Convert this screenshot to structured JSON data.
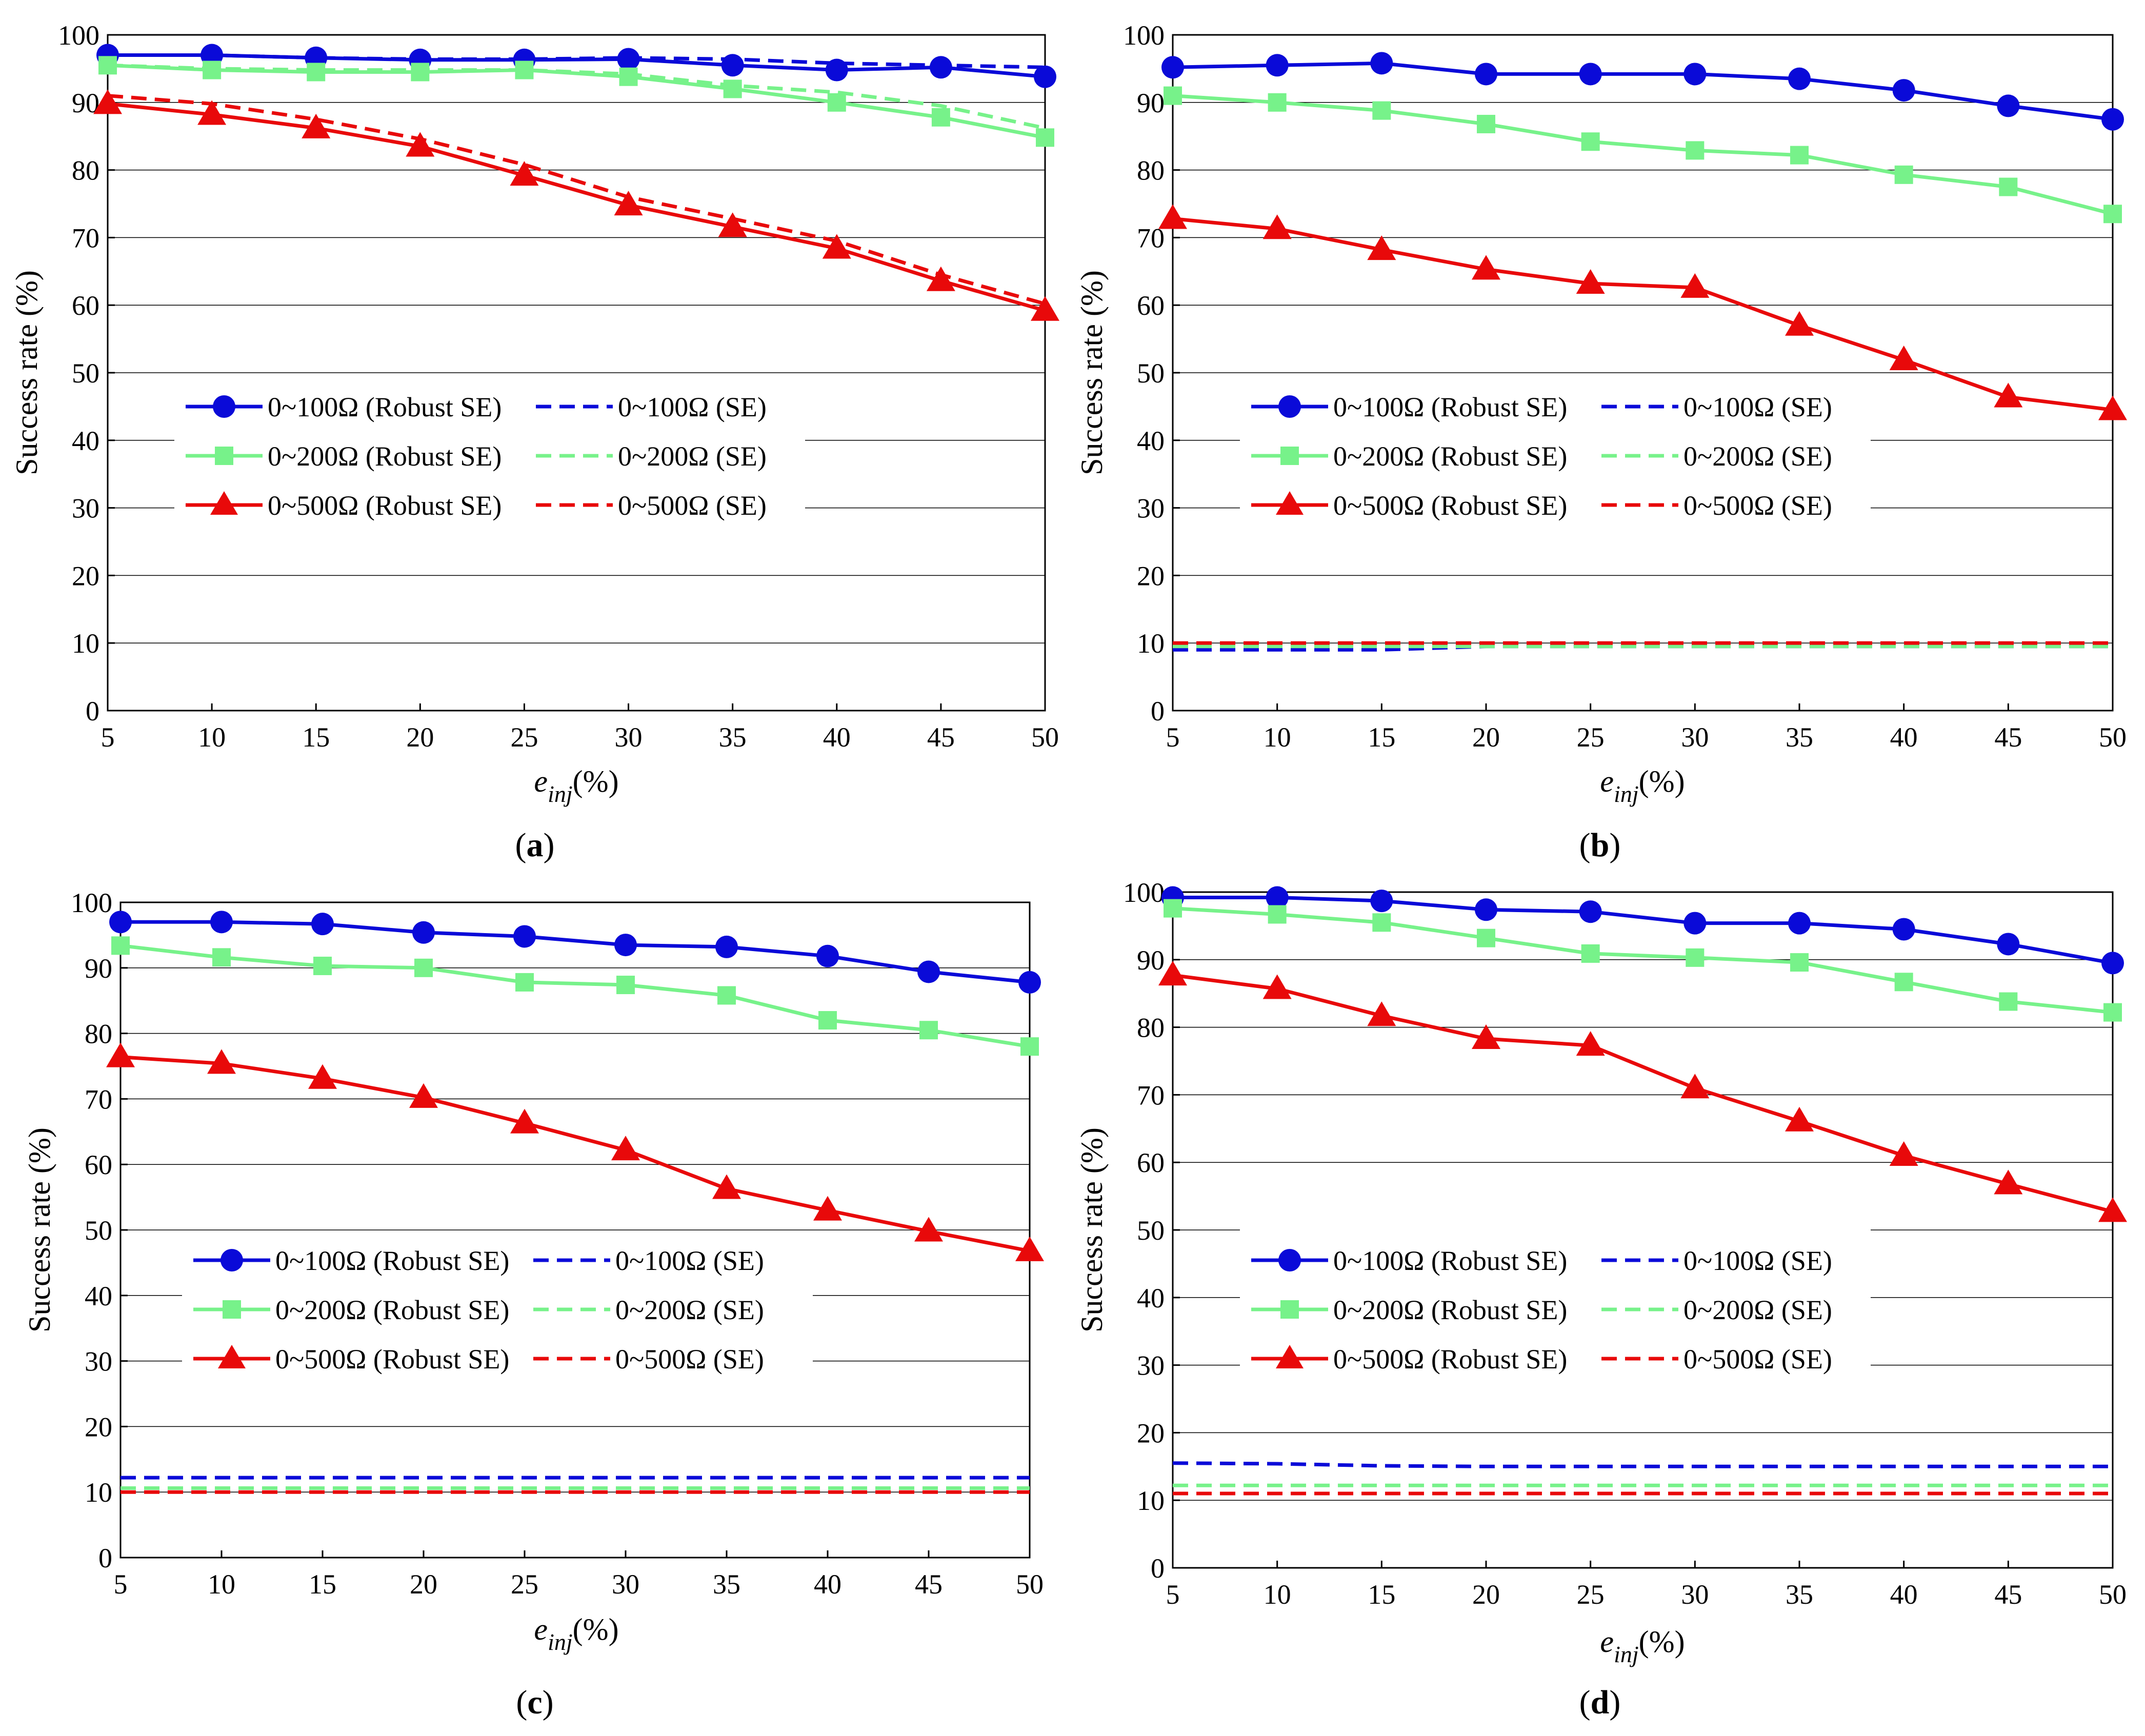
{
  "legend_labels": {
    "robust_100": "0~100Ω (Robust SE)",
    "se_100": "0~100Ω (SE)",
    "robust_200": "0~200Ω (Robust SE)",
    "se_200": "0~200Ω (SE)",
    "robust_500": "0~500Ω (Robust SE)",
    "se_500": "0~500Ω (SE)"
  },
  "axis_text": {
    "ylabel": "Success rate (%)",
    "xlabel_main": "e",
    "xlabel_sub": "inj",
    "xlabel_suffix": "(%)"
  },
  "captions": [
    {
      "open": "(",
      "letter": "a",
      "close": ")"
    },
    {
      "open": "(",
      "letter": "b",
      "close": ")"
    },
    {
      "open": "(",
      "letter": "c",
      "close": ")"
    },
    {
      "open": "(",
      "letter": "d",
      "close": ")"
    }
  ],
  "colors": {
    "blue": "#0a0ad8",
    "green": "#77f28a",
    "red": "#e8090a"
  },
  "chart_data": [
    {
      "type": "line",
      "panel": "a",
      "x": [
        5,
        10,
        15,
        20,
        25,
        30,
        35,
        40,
        45,
        50
      ],
      "xlim": [
        5,
        50
      ],
      "ylim": [
        0,
        100
      ],
      "xticks": [
        5,
        10,
        15,
        20,
        25,
        30,
        35,
        40,
        45,
        50
      ],
      "yticks": [
        0,
        10,
        20,
        30,
        40,
        50,
        60,
        70,
        80,
        90,
        100
      ],
      "xlabel": "e_inj(%)",
      "ylabel": "Success rate (%)",
      "legend": "center-left",
      "series": [
        {
          "name": "0~100Ω (Robust SE)",
          "color": "blue",
          "style": "solid",
          "marker": "circle",
          "values": [
            97.0,
            97.0,
            96.6,
            96.3,
            96.3,
            96.4,
            95.5,
            94.8,
            95.2,
            93.8
          ]
        },
        {
          "name": "0~100Ω (SE)",
          "color": "blue",
          "style": "dashed",
          "marker": "none",
          "values": [
            97.0,
            97.0,
            96.6,
            96.4,
            96.4,
            96.6,
            96.4,
            95.8,
            95.5,
            95.2
          ]
        },
        {
          "name": "0~200Ω (Robust SE)",
          "color": "green",
          "style": "solid",
          "marker": "square",
          "values": [
            95.5,
            94.8,
            94.5,
            94.5,
            94.8,
            93.8,
            92.0,
            90.0,
            87.8,
            84.8
          ]
        },
        {
          "name": "0~200Ω (SE)",
          "color": "green",
          "style": "dashed",
          "marker": "none",
          "values": [
            95.5,
            95.0,
            94.8,
            94.8,
            94.8,
            94.2,
            92.5,
            91.5,
            89.5,
            86.2
          ]
        },
        {
          "name": "0~500Ω (Robust SE)",
          "color": "red",
          "style": "solid",
          "marker": "triangle",
          "values": [
            89.8,
            88.2,
            86.2,
            83.5,
            79.2,
            74.8,
            71.6,
            68.4,
            63.6,
            59.2
          ]
        },
        {
          "name": "0~500Ω (SE)",
          "color": "red",
          "style": "dashed",
          "marker": "none",
          "values": [
            91.0,
            89.8,
            87.5,
            84.6,
            80.8,
            76.0,
            72.8,
            69.5,
            64.5,
            60.2
          ]
        }
      ]
    },
    {
      "type": "line",
      "panel": "b",
      "x": [
        5,
        10,
        15,
        20,
        25,
        30,
        35,
        40,
        45,
        50
      ],
      "xlim": [
        5,
        50
      ],
      "ylim": [
        0,
        100
      ],
      "xticks": [
        5,
        10,
        15,
        20,
        25,
        30,
        35,
        40,
        45,
        50
      ],
      "yticks": [
        0,
        10,
        20,
        30,
        40,
        50,
        60,
        70,
        80,
        90,
        100
      ],
      "xlabel": "e_inj(%)",
      "ylabel": "Success rate (%)",
      "legend": "center-left",
      "series": [
        {
          "name": "0~100Ω (Robust SE)",
          "color": "blue",
          "style": "solid",
          "marker": "circle",
          "values": [
            95.2,
            95.5,
            95.8,
            94.2,
            94.2,
            94.2,
            93.5,
            91.8,
            89.5,
            87.5
          ]
        },
        {
          "name": "0~100Ω (SE)",
          "color": "blue",
          "style": "dashed",
          "marker": "none",
          "values": [
            9.0,
            9.0,
            9.0,
            9.5,
            9.5,
            9.5,
            9.5,
            9.5,
            9.5,
            9.5
          ]
        },
        {
          "name": "0~200Ω (Robust SE)",
          "color": "green",
          "style": "solid",
          "marker": "square",
          "values": [
            91.0,
            90.0,
            88.8,
            86.8,
            84.2,
            82.9,
            82.2,
            79.3,
            77.5,
            73.5
          ]
        },
        {
          "name": "0~200Ω (SE)",
          "color": "green",
          "style": "dashed",
          "marker": "none",
          "values": [
            9.5,
            9.5,
            9.5,
            9.5,
            9.5,
            9.5,
            9.5,
            9.5,
            9.5,
            9.5
          ]
        },
        {
          "name": "0~500Ω (Robust SE)",
          "color": "red",
          "style": "solid",
          "marker": "triangle",
          "values": [
            72.8,
            71.3,
            68.2,
            65.3,
            63.2,
            62.6,
            57.0,
            51.9,
            46.4,
            44.5
          ]
        },
        {
          "name": "0~500Ω (SE)",
          "color": "red",
          "style": "dashed",
          "marker": "none",
          "values": [
            10.0,
            10.0,
            10.0,
            10.0,
            10.0,
            10.0,
            10.0,
            10.0,
            10.0,
            10.0
          ]
        }
      ]
    },
    {
      "type": "line",
      "panel": "c",
      "x": [
        5,
        10,
        15,
        20,
        25,
        30,
        35,
        40,
        45,
        50
      ],
      "xlim": [
        5,
        50
      ],
      "ylim": [
        0,
        100
      ],
      "xticks": [
        5,
        10,
        15,
        20,
        25,
        30,
        35,
        40,
        45,
        50
      ],
      "yticks": [
        0,
        10,
        20,
        30,
        40,
        50,
        60,
        70,
        80,
        90,
        100
      ],
      "xlabel": "e_inj(%)",
      "ylabel": "Success rate (%)",
      "legend": "center-left",
      "series": [
        {
          "name": "0~100Ω (Robust SE)",
          "color": "blue",
          "style": "solid",
          "marker": "circle",
          "values": [
            97.0,
            97.0,
            96.7,
            95.4,
            94.8,
            93.5,
            93.2,
            91.8,
            89.4,
            87.8
          ]
        },
        {
          "name": "0~100Ω (SE)",
          "color": "blue",
          "style": "dashed",
          "marker": "none",
          "values": [
            12.2,
            12.2,
            12.2,
            12.2,
            12.2,
            12.2,
            12.2,
            12.2,
            12.2,
            12.2
          ]
        },
        {
          "name": "0~200Ω (Robust SE)",
          "color": "green",
          "style": "solid",
          "marker": "square",
          "values": [
            93.4,
            91.6,
            90.3,
            90.0,
            87.8,
            87.4,
            85.8,
            82.0,
            80.5,
            78.0
          ]
        },
        {
          "name": "0~200Ω (SE)",
          "color": "green",
          "style": "dashed",
          "marker": "none",
          "values": [
            10.6,
            10.6,
            10.6,
            10.6,
            10.6,
            10.6,
            10.6,
            10.6,
            10.6,
            10.6
          ]
        },
        {
          "name": "0~500Ω (Robust SE)",
          "color": "red",
          "style": "solid",
          "marker": "triangle",
          "values": [
            76.4,
            75.4,
            73.1,
            70.2,
            66.3,
            62.2,
            56.3,
            53.0,
            49.8,
            46.8
          ]
        },
        {
          "name": "0~500Ω (SE)",
          "color": "red",
          "style": "dashed",
          "marker": "none",
          "values": [
            10.0,
            10.0,
            10.0,
            10.0,
            10.0,
            10.0,
            10.0,
            10.0,
            10.0,
            10.0
          ]
        }
      ]
    },
    {
      "type": "line",
      "panel": "d",
      "x": [
        5,
        10,
        15,
        20,
        25,
        30,
        35,
        40,
        45,
        50
      ],
      "xlim": [
        5,
        50
      ],
      "ylim": [
        0,
        100
      ],
      "xticks": [
        5,
        10,
        15,
        20,
        25,
        30,
        35,
        40,
        45,
        50
      ],
      "yticks": [
        0,
        10,
        20,
        30,
        40,
        50,
        60,
        70,
        80,
        90,
        100
      ],
      "xlabel": "e_inj(%)",
      "ylabel": "Success rate (%)",
      "legend": "center-left",
      "series": [
        {
          "name": "0~100Ω (Robust SE)",
          "color": "blue",
          "style": "solid",
          "marker": "circle",
          "values": [
            99.2,
            99.2,
            98.7,
            97.4,
            97.1,
            95.4,
            95.4,
            94.5,
            92.3,
            89.5
          ]
        },
        {
          "name": "0~100Ω (SE)",
          "color": "blue",
          "style": "dashed",
          "marker": "none",
          "values": [
            15.5,
            15.4,
            15.1,
            15.0,
            15.0,
            15.0,
            15.0,
            15.0,
            15.0,
            15.0
          ]
        },
        {
          "name": "0~200Ω (Robust SE)",
          "color": "green",
          "style": "solid",
          "marker": "square",
          "values": [
            97.6,
            96.7,
            95.5,
            93.2,
            90.9,
            90.3,
            89.6,
            86.7,
            83.8,
            82.2
          ]
        },
        {
          "name": "0~200Ω (SE)",
          "color": "green",
          "style": "dashed",
          "marker": "none",
          "values": [
            12.2,
            12.2,
            12.2,
            12.2,
            12.2,
            12.2,
            12.2,
            12.2,
            12.2,
            12.2
          ]
        },
        {
          "name": "0~500Ω (Robust SE)",
          "color": "red",
          "style": "solid",
          "marker": "triangle",
          "values": [
            87.7,
            85.7,
            81.7,
            78.3,
            77.3,
            71.0,
            66.1,
            61.0,
            56.8,
            52.7
          ]
        },
        {
          "name": "0~500Ω (SE)",
          "color": "red",
          "style": "dashed",
          "marker": "none",
          "values": [
            11.0,
            11.0,
            11.0,
            11.0,
            11.0,
            11.0,
            11.0,
            11.0,
            11.0,
            11.0
          ]
        }
      ]
    }
  ]
}
